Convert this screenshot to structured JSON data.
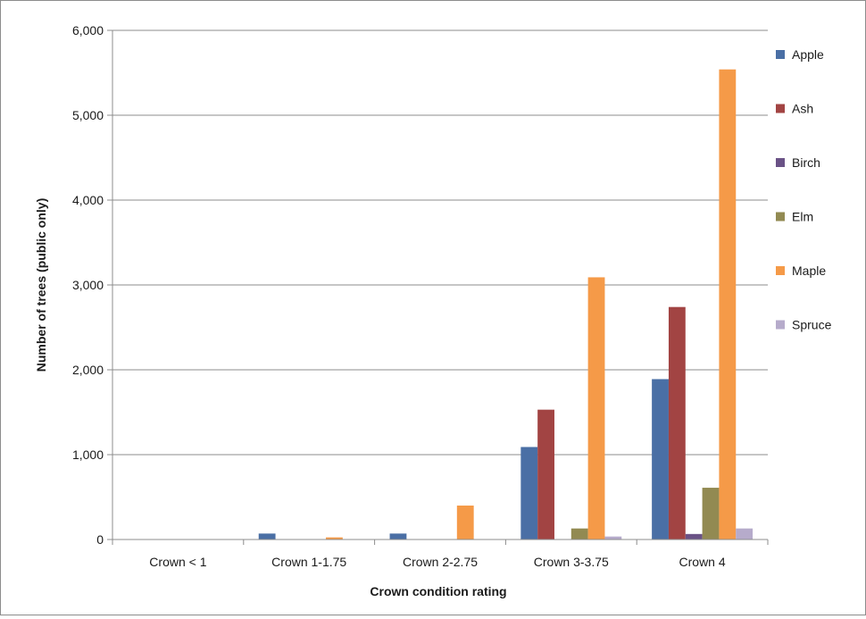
{
  "chart_data": {
    "type": "bar",
    "title": "",
    "xlabel": "Crown condition rating",
    "ylabel": "Number of trees (public only)",
    "categories": [
      "Crown < 1",
      "Crown 1-1.75",
      "Crown 2-2.75",
      "Crown 3-3.75",
      "Crown 4"
    ],
    "ylim": [
      0,
      6000
    ],
    "yticks": [
      {
        "value": 0,
        "label": "0"
      },
      {
        "value": 1000,
        "label": "1,000"
      },
      {
        "value": 2000,
        "label": "2,000"
      },
      {
        "value": 3000,
        "label": "3,000"
      },
      {
        "value": 4000,
        "label": "4,000"
      },
      {
        "value": 5000,
        "label": "5,000"
      },
      {
        "value": 6000,
        "label": "6,000"
      }
    ],
    "grid": true,
    "legend_position": "right",
    "series": [
      {
        "name": "Apple",
        "color": "#4a6fa5",
        "values": [
          0,
          70,
          70,
          1090,
          1890
        ]
      },
      {
        "name": "Ash",
        "color": "#a24443",
        "values": [
          0,
          0,
          0,
          1530,
          2740
        ]
      },
      {
        "name": "Birch",
        "color": "#6a5286",
        "values": [
          0,
          0,
          0,
          0,
          65
        ]
      },
      {
        "name": "Elm",
        "color": "#928a52",
        "values": [
          0,
          0,
          0,
          130,
          610
        ]
      },
      {
        "name": "Maple",
        "color": "#f59a48",
        "values": [
          0,
          25,
          400,
          3090,
          5540
        ]
      },
      {
        "name": "Spruce",
        "color": "#b6abcb",
        "values": [
          0,
          0,
          0,
          35,
          130
        ]
      }
    ]
  }
}
